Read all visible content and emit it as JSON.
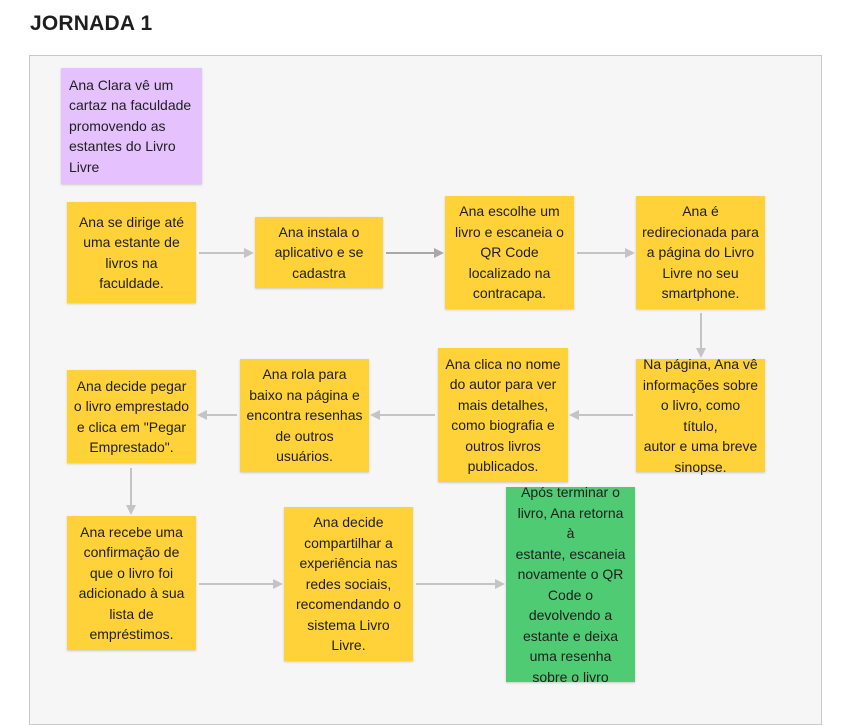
{
  "title": "JORNADA 1",
  "colors": {
    "yellow_note": "#ffd23a",
    "purple_note": "#e5c2fd",
    "green_note": "#4fcb74",
    "arrow": "#c4c4c4",
    "board_background": "#f6f6f6"
  },
  "notes": {
    "intro": "Ana Clara vê um\ncartaz na faculdade\npromovendo as\nestantes do Livro\nLivre",
    "step1": "Ana se dirige até\numa estante de\nlivros na\nfaculdade.",
    "step2": "Ana instala o\naplicativo e se\ncadastra",
    "step3": "Ana escolhe um\nlivro e escaneia o\nQR Code\nlocalizado na\ncontracapa.",
    "step4": "Ana é\nredirecionada para\na página do Livro\nLivre no seu\nsmartphone.",
    "step5": "Na página, Ana vê\ninformações sobre\no livro, como título,\nautor e uma breve\nsinopse.",
    "step6": "Ana clica no nome\ndo autor para ver\nmais detalhes,\ncomo biografia e\noutros livros\npublicados.",
    "step7": "Ana rola para\nbaixo na página e\nencontra resenhas\nde outros\nusuários.",
    "step8": "Ana decide pegar\no livro emprestado\ne clica em \"Pegar\nEmprestado\".",
    "step9": "Ana recebe uma\nconfirmação de\nque o livro foi\nadicionado à sua\nlista de\nempréstimos.",
    "step10": "Ana decide\ncompartilhar a\nexperiência nas\nredes sociais,\nrecomendando o\nsistema Livro\nLivre.",
    "step11": "Após terminar o\nlivro, Ana retorna à\nestante, escaneia\nnovamente o QR\nCode o\ndevolvendo a\nestante e deixa\numa resenha\nsobre o livro"
  }
}
